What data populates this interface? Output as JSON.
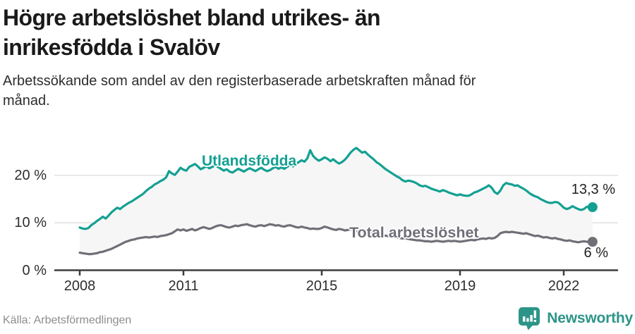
{
  "header": {
    "title": "Högre arbetslöshet bland utrikes- än inrikesfödda i Svalöv",
    "subtitle": "Arbetssökande som andel av den registerbaserade arbetskraften månad för månad."
  },
  "chart_data": {
    "type": "line",
    "title": "Högre arbetslöshet bland utrikes- än inrikesfödda i Svalöv",
    "xlabel": "",
    "ylabel": "Arbetssökande som andel av den registerbaserade arbetskraften",
    "x_start_year": 2008,
    "x_interval": "monthly",
    "x_end": "2022-11",
    "ylim": [
      0,
      27
    ],
    "y_ticks": [
      0,
      10,
      20
    ],
    "y_tick_labels": [
      "0 %",
      "10 %",
      "20 %"
    ],
    "x_ticks": [
      2008,
      2011,
      2015,
      2019,
      2022
    ],
    "x_tick_labels": [
      "2008",
      "2011",
      "2015",
      "2019",
      "2022"
    ],
    "grid": "horizontal",
    "legend_position": "inline-labels",
    "end_labels": [
      "13,3 %",
      "6 %"
    ],
    "series": [
      {
        "name": "Utlandsfödda",
        "color": "#13a093",
        "last_value_label": "13,3 %",
        "values": [
          9.0,
          8.8,
          8.7,
          8.9,
          9.5,
          9.9,
          10.4,
          10.8,
          11.3,
          10.9,
          11.5,
          12.2,
          12.7,
          13.2,
          12.9,
          13.4,
          13.8,
          14.2,
          14.5,
          14.9,
          15.3,
          15.7,
          16.1,
          16.7,
          17.2,
          17.6,
          18.1,
          18.4,
          18.8,
          19.1,
          19.6,
          20.9,
          20.4,
          20.1,
          20.8,
          21.6,
          21.2,
          21.0,
          21.8,
          22.1,
          22.4,
          21.9,
          21.3,
          21.6,
          21.9,
          21.5,
          21.8,
          22.1,
          21.8,
          21.4,
          21.0,
          21.3,
          20.8,
          20.6,
          21.0,
          21.4,
          21.1,
          20.8,
          21.2,
          21.5,
          21.2,
          20.9,
          21.3,
          21.6,
          21.2,
          20.9,
          21.1,
          21.5,
          21.8,
          21.4,
          21.7,
          21.4,
          21.8,
          22.2,
          21.9,
          22.4,
          22.8,
          23.2,
          22.9,
          23.6,
          25.3,
          24.1,
          23.5,
          23.1,
          23.4,
          23.8,
          23.5,
          23.0,
          23.4,
          22.9,
          22.5,
          22.8,
          23.3,
          24.0,
          24.8,
          25.4,
          25.8,
          25.3,
          24.8,
          25.0,
          24.4,
          23.9,
          23.4,
          22.8,
          22.4,
          21.9,
          21.4,
          21.0,
          20.6,
          20.2,
          19.8,
          19.5,
          19.0,
          18.7,
          18.9,
          18.8,
          18.6,
          18.3,
          17.9,
          17.7,
          17.8,
          17.5,
          17.2,
          17.0,
          16.8,
          16.6,
          16.9,
          16.7,
          16.4,
          16.2,
          16.0,
          15.8,
          16.0,
          15.8,
          15.7,
          15.7,
          16.0,
          16.4,
          16.6,
          16.9,
          17.2,
          17.5,
          17.9,
          17.4,
          16.5,
          16.1,
          16.8,
          17.9,
          18.4,
          18.2,
          18.1,
          17.8,
          17.9,
          17.5,
          17.2,
          16.8,
          16.3,
          15.9,
          15.6,
          15.4,
          15.0,
          14.7,
          14.4,
          14.2,
          14.2,
          14.4,
          14.3,
          13.8,
          13.2,
          12.9,
          13.1,
          13.5,
          13.2,
          12.9,
          12.7,
          12.9,
          13.4,
          13.2,
          13.3
        ]
      },
      {
        "name": "Total arbetslöshet",
        "color": "#6f6f78",
        "last_value_label": "6 %",
        "values": [
          3.7,
          3.6,
          3.5,
          3.4,
          3.4,
          3.5,
          3.6,
          3.8,
          3.9,
          4.1,
          4.3,
          4.5,
          4.8,
          5.1,
          5.4,
          5.7,
          6.0,
          6.2,
          6.4,
          6.5,
          6.7,
          6.8,
          6.9,
          7.0,
          6.9,
          7.0,
          7.1,
          7.0,
          7.2,
          7.3,
          7.4,
          7.6,
          7.8,
          8.2,
          8.6,
          8.4,
          8.6,
          8.3,
          8.5,
          8.7,
          8.4,
          8.6,
          8.9,
          9.1,
          8.9,
          8.7,
          8.9,
          9.2,
          9.4,
          9.5,
          9.3,
          9.1,
          9.0,
          9.2,
          9.4,
          9.3,
          9.5,
          9.6,
          9.7,
          9.5,
          9.3,
          9.2,
          9.4,
          9.5,
          9.3,
          9.5,
          9.7,
          9.6,
          9.4,
          9.5,
          9.3,
          9.2,
          9.4,
          9.5,
          9.3,
          9.1,
          9.0,
          9.2,
          9.0,
          8.9,
          8.7,
          8.8,
          8.7,
          8.7,
          8.9,
          9.2,
          9.0,
          8.8,
          8.6,
          8.5,
          8.7,
          8.6,
          8.4,
          8.5,
          8.6,
          8.4,
          8.2,
          8.1,
          8.2,
          8.0,
          7.9,
          7.7,
          7.8,
          7.6,
          7.5,
          7.4,
          7.3,
          7.2,
          7.1,
          7.0,
          6.9,
          6.8,
          6.7,
          6.8,
          6.6,
          6.5,
          6.4,
          6.3,
          6.3,
          6.2,
          6.1,
          6.1,
          6.0,
          6.1,
          6.2,
          6.1,
          6.0,
          6.1,
          6.2,
          6.1,
          6.2,
          6.1,
          6.0,
          6.1,
          6.2,
          6.3,
          6.4,
          6.3,
          6.5,
          6.6,
          6.7,
          6.6,
          6.8,
          6.7,
          6.8,
          7.2,
          7.8,
          8.0,
          8.1,
          8.0,
          8.1,
          8.0,
          7.9,
          7.8,
          7.7,
          7.8,
          7.6,
          7.4,
          7.2,
          7.3,
          7.1,
          6.9,
          7.0,
          6.8,
          6.7,
          6.8,
          6.6,
          6.5,
          6.3,
          6.2,
          6.3,
          6.1,
          6.0,
          5.9,
          6.0,
          6.1,
          6.0,
          6.0,
          6.0
        ]
      }
    ]
  },
  "colors": {
    "foreign_line": "#13a093",
    "total_line": "#6f6f78",
    "band_fill": "#f6f6f6",
    "gridline": "#dcdcdc",
    "axis": "#3d3d3d",
    "brand_teal": "#2d9488"
  },
  "footer": {
    "source": "Källa: Arbetsförmedlingen",
    "brand": "Newsworthy"
  }
}
